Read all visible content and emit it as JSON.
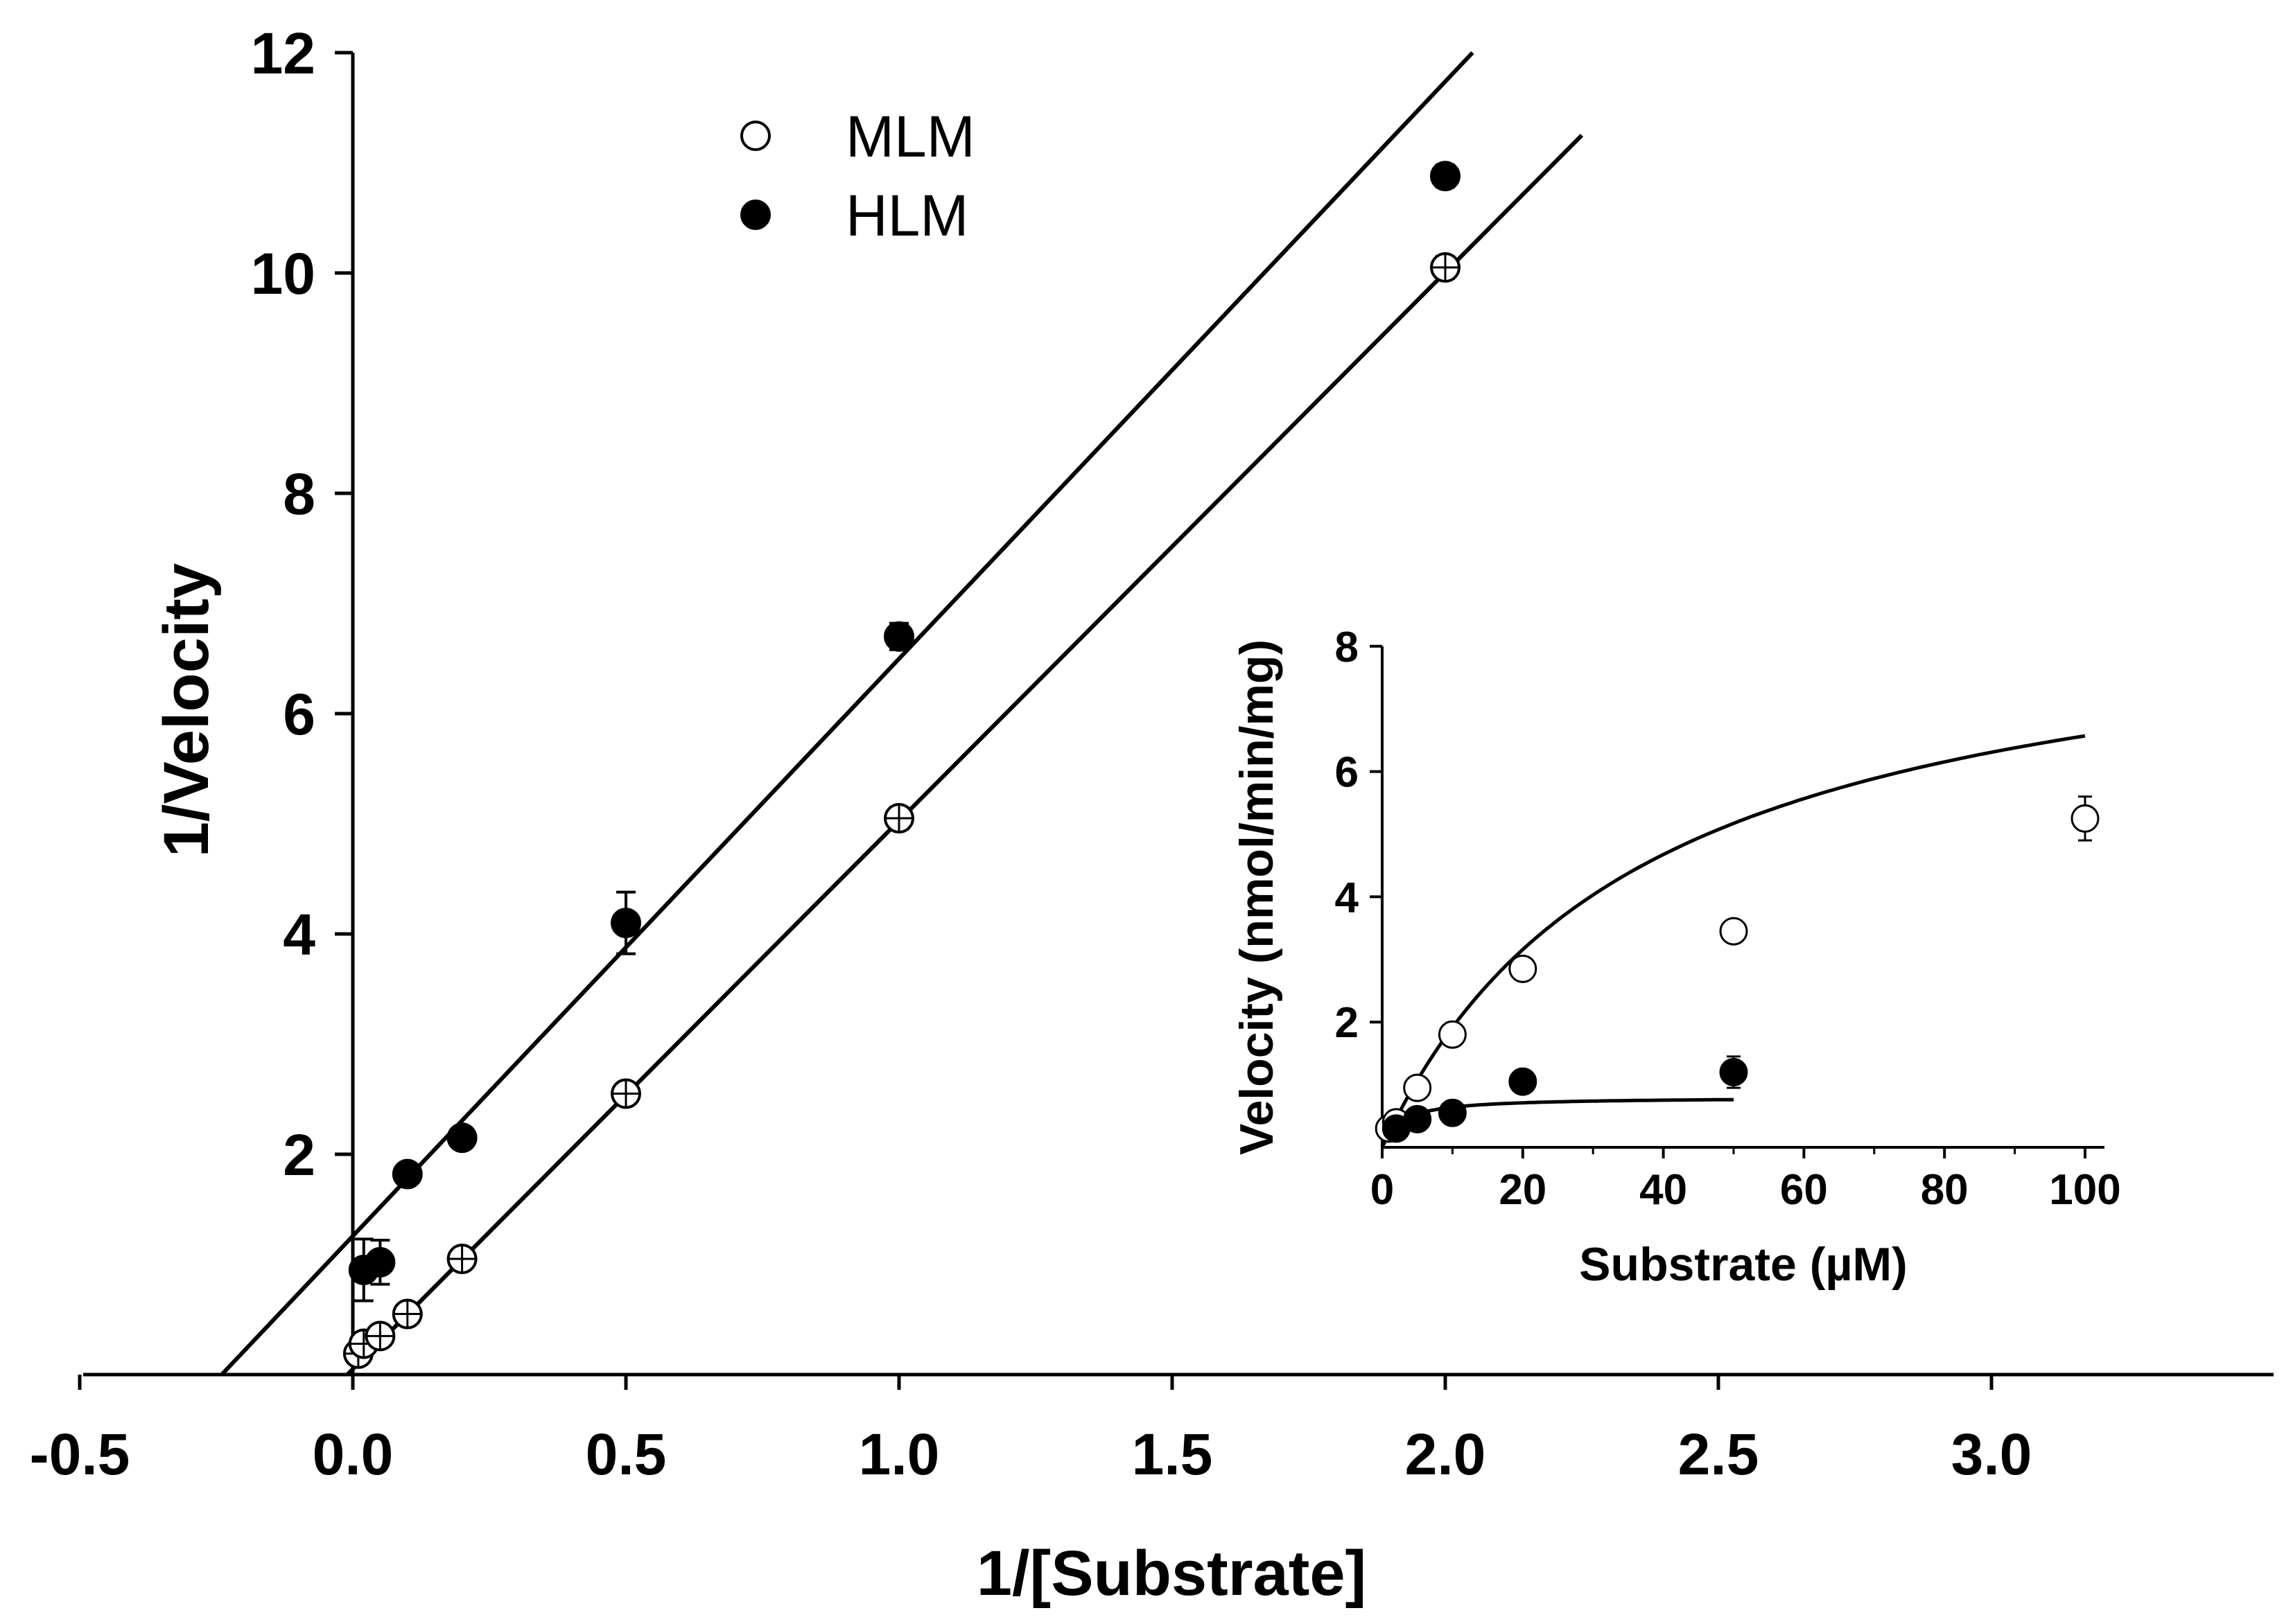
{
  "chart_data": [
    {
      "type": "scatter",
      "name": "main",
      "title": "",
      "xlabel": "1/[Substrate]",
      "ylabel": "1/Velocity",
      "xlim": [
        -0.5,
        3.5
      ],
      "ylim": [
        0,
        12
      ],
      "xticks": [
        -0.5,
        0.0,
        0.5,
        1.0,
        1.5,
        2.0,
        2.5,
        3.0
      ],
      "xtick_labels": [
        "-0.5",
        "0.0",
        "0.5",
        "1.0",
        "1.5",
        "2.0",
        "2.5",
        "3.0"
      ],
      "yticks": [
        2,
        4,
        6,
        8,
        10,
        12
      ],
      "ytick_labels": [
        "2",
        "4",
        "6",
        "8",
        "10",
        "12"
      ],
      "grid": false,
      "legend": {
        "position": "top-center",
        "entries": [
          "MLM",
          "HLM"
        ]
      },
      "series": [
        {
          "name": "MLM",
          "marker": "open-circle",
          "x": [
            0.01,
            0.02,
            0.05,
            0.1,
            0.2,
            0.5,
            1.0,
            2.0
          ],
          "y": [
            0.19,
            0.28,
            0.35,
            0.55,
            1.05,
            2.55,
            5.05,
            10.05
          ],
          "err": [
            0.05,
            0.06,
            0.05,
            0.07,
            0.08,
            0.08,
            0.1,
            0.1
          ]
        },
        {
          "name": "HLM",
          "marker": "filled-circle",
          "x": [
            0.02,
            0.05,
            0.1,
            0.2,
            0.5,
            1.0,
            2.0
          ],
          "y": [
            0.95,
            1.02,
            1.82,
            2.15,
            4.1,
            6.7,
            10.88
          ],
          "err": [
            0.28,
            0.2,
            0.08,
            0.08,
            0.28,
            0.12,
            0.1
          ]
        }
      ],
      "fit_lines": [
        {
          "name": "HLM fit",
          "x": [
            -0.24,
            2.05
          ],
          "y": [
            0.0,
            12.0
          ]
        },
        {
          "name": "MLM fit",
          "x": [
            -0.01,
            2.25
          ],
          "y": [
            0.0,
            11.25
          ]
        }
      ]
    },
    {
      "type": "scatter",
      "name": "inset",
      "title": "",
      "xlabel": "Substrate (µM)",
      "ylabel": "Velocity (nmol/min/mg)",
      "xlim": [
        0,
        100
      ],
      "ylim": [
        0,
        8
      ],
      "xticks": [
        0,
        20,
        40,
        60,
        80,
        100
      ],
      "xtick_labels": [
        "0",
        "20",
        "40",
        "60",
        "80",
        "100"
      ],
      "yticks": [
        2,
        4,
        6,
        8
      ],
      "ytick_labels": [
        "2",
        "4",
        "6",
        "8"
      ],
      "grid": false,
      "series": [
        {
          "name": "MLM",
          "marker": "open-circle",
          "x": [
            1,
            2,
            5,
            10,
            20,
            50,
            100
          ],
          "y": [
            0.3,
            0.4,
            0.95,
            1.8,
            2.85,
            3.45,
            5.25
          ],
          "err": [
            0.08,
            0.08,
            0.08,
            0.12,
            0.15,
            0.15,
            0.35
          ]
        },
        {
          "name": "HLM",
          "marker": "filled-circle",
          "x": [
            2,
            5,
            10,
            20,
            50
          ],
          "y": [
            0.3,
            0.45,
            0.55,
            1.05,
            1.2
          ],
          "err": [
            0.05,
            0.05,
            0.05,
            0.08,
            0.25
          ]
        }
      ],
      "fit_curves": [
        {
          "name": "MLM fit",
          "model": "michaelis-menten",
          "vmax": 9.0,
          "km": 37,
          "x_range": [
            0,
            100
          ]
        },
        {
          "name": "HLM fit",
          "model": "michaelis-menten",
          "vmax": 0.8,
          "km": 2.5,
          "x_range": [
            0,
            50
          ]
        }
      ]
    }
  ]
}
